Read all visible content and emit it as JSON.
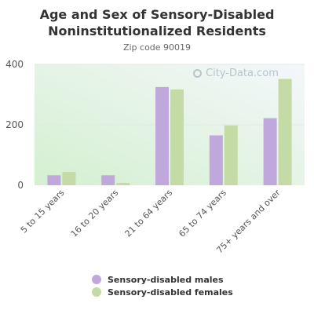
{
  "title_line1": "Age and Sex of Sensory-Disabled",
  "title_line2": "Noninstitutionalized Residents",
  "subtitle": "Zip code 90019",
  "watermark": "City-Data.com",
  "colors": {
    "males": "#c0a8dc",
    "females": "#c5dba6"
  },
  "chart_data": {
    "type": "bar",
    "categories": [
      "5 to 15 years",
      "16 to 20 years",
      "21 to 64 years",
      "65 to 74 years",
      "75+ years and over"
    ],
    "series": [
      {
        "name": "Sensory-disabled males",
        "values": [
          33,
          33,
          325,
          165,
          222
        ]
      },
      {
        "name": "Sensory-disabled females",
        "values": [
          44,
          8,
          317,
          198,
          352
        ]
      }
    ],
    "yticks": [
      0,
      200,
      400
    ],
    "ylim": [
      0,
      400
    ],
    "grid": true,
    "legend_position": "bottom"
  }
}
